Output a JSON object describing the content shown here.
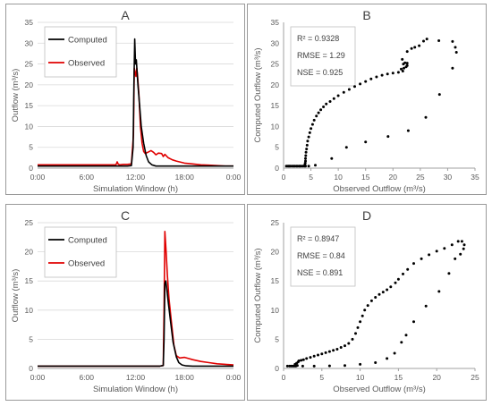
{
  "chart_data": [
    {
      "panel": "A",
      "type": "line",
      "title": "A",
      "xlabel": "Simulation Window (h)",
      "ylabel": "Outflow (m³/s)",
      "xlim": [
        0,
        24
      ],
      "ylim": [
        0,
        35
      ],
      "xticks": [
        0,
        6,
        12,
        18,
        24
      ],
      "xtick_labels": [
        "0:00",
        "6:00",
        "12:00",
        "18:00",
        "0:00"
      ],
      "yticks": [
        0,
        5,
        10,
        15,
        20,
        25,
        30,
        35
      ],
      "ytick_labels": [
        "0",
        "5",
        "10",
        "15",
        "20",
        "25",
        "30",
        "35"
      ],
      "grid": "horizontal",
      "legend": "top-left",
      "series": [
        {
          "name": "Computed",
          "color": "#000000",
          "x": [
            0,
            10.0,
            11.0,
            11.5,
            11.7,
            11.8,
            11.9,
            12.0,
            12.1,
            12.2,
            12.3,
            12.5,
            12.7,
            13.0,
            13.3,
            13.6,
            14.0,
            14.5,
            15.0,
            16.0,
            24
          ],
          "y": [
            0.5,
            0.5,
            0.5,
            0.6,
            5,
            20,
            31,
            25,
            26,
            23,
            20,
            15,
            10,
            6,
            3,
            1.5,
            0.8,
            0.5,
            0.5,
            0.5,
            0.5
          ]
        },
        {
          "name": "Observed",
          "color": "#e00000",
          "x": [
            0,
            9.6,
            9.75,
            9.9,
            10.1,
            10.5,
            11.0,
            11.5,
            11.75,
            11.85,
            11.95,
            12.05,
            12.15,
            12.25,
            12.4,
            12.6,
            12.8,
            13.0,
            13.2,
            13.5,
            13.9,
            14.2,
            14.5,
            14.8,
            15.2,
            15.4,
            15.6,
            16.0,
            16.5,
            17.0,
            18.0,
            19.0,
            20.0,
            21.0,
            22.0,
            23.0,
            24
          ],
          "y": [
            0.8,
            0.8,
            1.5,
            0.9,
            0.8,
            0.9,
            0.9,
            1.0,
            8,
            24,
            23,
            22,
            24,
            22,
            18,
            10,
            6,
            4,
            3.5,
            3.8,
            4.2,
            3.8,
            3.2,
            3.6,
            3.5,
            2.8,
            3.3,
            2.5,
            2.0,
            1.7,
            1.2,
            1.0,
            0.8,
            0.7,
            0.6,
            0.5,
            0.5
          ]
        }
      ]
    },
    {
      "panel": "B",
      "type": "scatter",
      "title": "B",
      "xlabel": "Observed Outflow (m³/s)",
      "ylabel": "Computed Outflow (m³/s)",
      "xlim": [
        0,
        35
      ],
      "ylim": [
        0,
        35
      ],
      "xticks": [
        0,
        5,
        10,
        15,
        20,
        25,
        30,
        35
      ],
      "yticks": [
        0,
        5,
        10,
        15,
        20,
        25,
        30,
        35
      ],
      "grid": "none",
      "stats": [
        "R² = 0.9328",
        "RMSE = 1.29",
        "NSE = 0.925"
      ],
      "points": [
        [
          0.5,
          0.5
        ],
        [
          0.8,
          0.5
        ],
        [
          1.0,
          0.5
        ],
        [
          1.2,
          0.5
        ],
        [
          1.5,
          0.5
        ],
        [
          1.8,
          0.5
        ],
        [
          2.0,
          0.5
        ],
        [
          2.3,
          0.5
        ],
        [
          2.5,
          0.5
        ],
        [
          2.8,
          0.5
        ],
        [
          3.0,
          0.5
        ],
        [
          3.2,
          0.5
        ],
        [
          3.5,
          0.5
        ],
        [
          3.8,
          0.5
        ],
        [
          4.0,
          0.5
        ],
        [
          3.9,
          0.8
        ],
        [
          3.95,
          1.2
        ],
        [
          4.0,
          1.7
        ],
        [
          4.0,
          2.3
        ],
        [
          4.05,
          3.0
        ],
        [
          4.1,
          3.8
        ],
        [
          4.2,
          4.6
        ],
        [
          4.3,
          5.5
        ],
        [
          4.4,
          6.5
        ],
        [
          4.6,
          7.5
        ],
        [
          4.8,
          8.5
        ],
        [
          5.0,
          9.5
        ],
        [
          5.3,
          10.5
        ],
        [
          5.6,
          11.5
        ],
        [
          6.0,
          12.5
        ],
        [
          6.4,
          13.3
        ],
        [
          6.8,
          14.0
        ],
        [
          7.3,
          14.7
        ],
        [
          7.8,
          15.4
        ],
        [
          8.5,
          16.0
        ],
        [
          9.2,
          16.7
        ],
        [
          10.0,
          17.4
        ],
        [
          11.0,
          18.2
        ],
        [
          12.0,
          18.9
        ],
        [
          13.0,
          19.6
        ],
        [
          14.0,
          20.2
        ],
        [
          15.0,
          20.8
        ],
        [
          16.0,
          21.4
        ],
        [
          17.0,
          21.9
        ],
        [
          18.0,
          22.3
        ],
        [
          19.0,
          22.6
        ],
        [
          20.0,
          22.8
        ],
        [
          21.0,
          23.0
        ],
        [
          21.8,
          23.3
        ],
        [
          21.5,
          23.8
        ],
        [
          22.0,
          24.0
        ],
        [
          22.4,
          24.3
        ],
        [
          22.6,
          24.6
        ],
        [
          21.9,
          25.0
        ],
        [
          22.2,
          25.3
        ],
        [
          22.6,
          25.2
        ],
        [
          21.7,
          26.1
        ],
        [
          22.6,
          28.0
        ],
        [
          23.4,
          28.7
        ],
        [
          24.0,
          29.0
        ],
        [
          24.8,
          29.4
        ],
        [
          25.6,
          30.5
        ],
        [
          26.2,
          31.0
        ],
        [
          28.4,
          30.6
        ],
        [
          30.9,
          30.4
        ],
        [
          31.4,
          29.0
        ],
        [
          31.6,
          27.8
        ],
        [
          30.9,
          24.0
        ],
        [
          28.5,
          17.7
        ],
        [
          26.0,
          12.2
        ],
        [
          22.8,
          9.0
        ],
        [
          19.1,
          7.6
        ],
        [
          15.0,
          6.3
        ],
        [
          11.5,
          5.0
        ],
        [
          8.8,
          2.3
        ],
        [
          5.8,
          0.7
        ],
        [
          4.6,
          0.5
        ]
      ]
    },
    {
      "panel": "C",
      "type": "line",
      "title": "C",
      "xlabel": "Simulation Window (h)",
      "ylabel": "Outflow (m³/s)",
      "xlim": [
        0,
        24
      ],
      "ylim": [
        0,
        25
      ],
      "xticks": [
        0,
        6,
        12,
        18,
        24
      ],
      "xtick_labels": [
        "0:00",
        "6:00",
        "12:00",
        "18:00",
        "0:00"
      ],
      "yticks": [
        0,
        5,
        10,
        15,
        20,
        25
      ],
      "ytick_labels": [
        "0",
        "5",
        "10",
        "15",
        "20",
        "25"
      ],
      "grid": "horizontal",
      "legend": "top-left",
      "series": [
        {
          "name": "Computed",
          "color": "#000000",
          "x": [
            0,
            14.0,
            15.0,
            15.4,
            15.5,
            15.6,
            15.7,
            15.8,
            16.0,
            16.3,
            16.6,
            17.0,
            17.3,
            17.7,
            18.2,
            19.0,
            24
          ],
          "y": [
            0.4,
            0.4,
            0.4,
            0.5,
            5,
            14.5,
            15,
            14,
            11.5,
            8,
            4.5,
            2,
            1.0,
            0.6,
            0.45,
            0.4,
            0.4
          ]
        },
        {
          "name": "Observed",
          "color": "#e00000",
          "x": [
            0,
            15.0,
            15.4,
            15.5,
            15.6,
            15.75,
            15.9,
            16.1,
            16.4,
            16.7,
            17.0,
            17.4,
            18.0,
            18.5,
            19.0,
            20.0,
            21.0,
            22.0,
            23.0,
            24
          ],
          "y": [
            0.4,
            0.4,
            0.5,
            10,
            23.5,
            20,
            16,
            12,
            8,
            4,
            2.2,
            1.8,
            1.9,
            1.7,
            1.5,
            1.2,
            1.0,
            0.8,
            0.7,
            0.6
          ]
        }
      ]
    },
    {
      "panel": "D",
      "type": "scatter",
      "title": "D",
      "xlabel": "Observed Outflow (m³/s)",
      "ylabel": "Computed Outflow (m³/s)",
      "xlim": [
        0,
        25
      ],
      "ylim": [
        0,
        25
      ],
      "xticks": [
        0,
        5,
        10,
        15,
        20,
        25
      ],
      "yticks": [
        0,
        5,
        10,
        15,
        20,
        25
      ],
      "grid": "none",
      "stats": [
        "R² = 0.8947",
        "RMSE = 0.84",
        "NSE = 0.891"
      ],
      "points": [
        [
          0.5,
          0.4
        ],
        [
          0.8,
          0.4
        ],
        [
          1.0,
          0.4
        ],
        [
          1.2,
          0.4
        ],
        [
          1.4,
          0.4
        ],
        [
          1.6,
          0.4
        ],
        [
          1.8,
          0.5
        ],
        [
          1.5,
          0.7
        ],
        [
          1.7,
          0.9
        ],
        [
          1.9,
          1.1
        ],
        [
          2.0,
          1.3
        ],
        [
          2.3,
          1.4
        ],
        [
          2.6,
          1.5
        ],
        [
          3.0,
          1.7
        ],
        [
          3.5,
          1.9
        ],
        [
          4.0,
          2.1
        ],
        [
          4.5,
          2.3
        ],
        [
          5.0,
          2.5
        ],
        [
          5.5,
          2.7
        ],
        [
          6.0,
          2.9
        ],
        [
          6.5,
          3.1
        ],
        [
          7.0,
          3.3
        ],
        [
          7.5,
          3.6
        ],
        [
          8.0,
          3.9
        ],
        [
          8.5,
          4.3
        ],
        [
          9.0,
          5.0
        ],
        [
          9.4,
          6.0
        ],
        [
          9.7,
          7.0
        ],
        [
          10.0,
          8.0
        ],
        [
          10.3,
          9.0
        ],
        [
          10.6,
          10.0
        ],
        [
          11.0,
          10.8
        ],
        [
          11.5,
          11.6
        ],
        [
          12.0,
          12.2
        ],
        [
          12.5,
          12.7
        ],
        [
          13.0,
          13.1
        ],
        [
          13.5,
          13.5
        ],
        [
          14.0,
          14.0
        ],
        [
          14.6,
          14.7
        ],
        [
          15.0,
          15.3
        ],
        [
          15.6,
          16.2
        ],
        [
          16.2,
          17.0
        ],
        [
          17.0,
          18.0
        ],
        [
          18.0,
          18.8
        ],
        [
          19.0,
          19.5
        ],
        [
          20.0,
          20.1
        ],
        [
          21.0,
          20.6
        ],
        [
          22.0,
          21.2
        ],
        [
          22.8,
          21.8
        ],
        [
          23.3,
          21.8
        ],
        [
          23.6,
          21.2
        ],
        [
          23.5,
          20.5
        ],
        [
          23.1,
          19.6
        ],
        [
          22.4,
          18.8
        ],
        [
          21.6,
          16.3
        ],
        [
          20.3,
          13.2
        ],
        [
          18.6,
          10.7
        ],
        [
          17.0,
          8.0
        ],
        [
          16.0,
          5.7
        ],
        [
          15.4,
          4.5
        ],
        [
          14.5,
          2.6
        ],
        [
          13.5,
          1.7
        ],
        [
          12.0,
          1.0
        ],
        [
          10.0,
          0.7
        ],
        [
          8.0,
          0.5
        ],
        [
          6.0,
          0.45
        ],
        [
          4.0,
          0.4
        ],
        [
          2.5,
          0.4
        ]
      ]
    }
  ]
}
